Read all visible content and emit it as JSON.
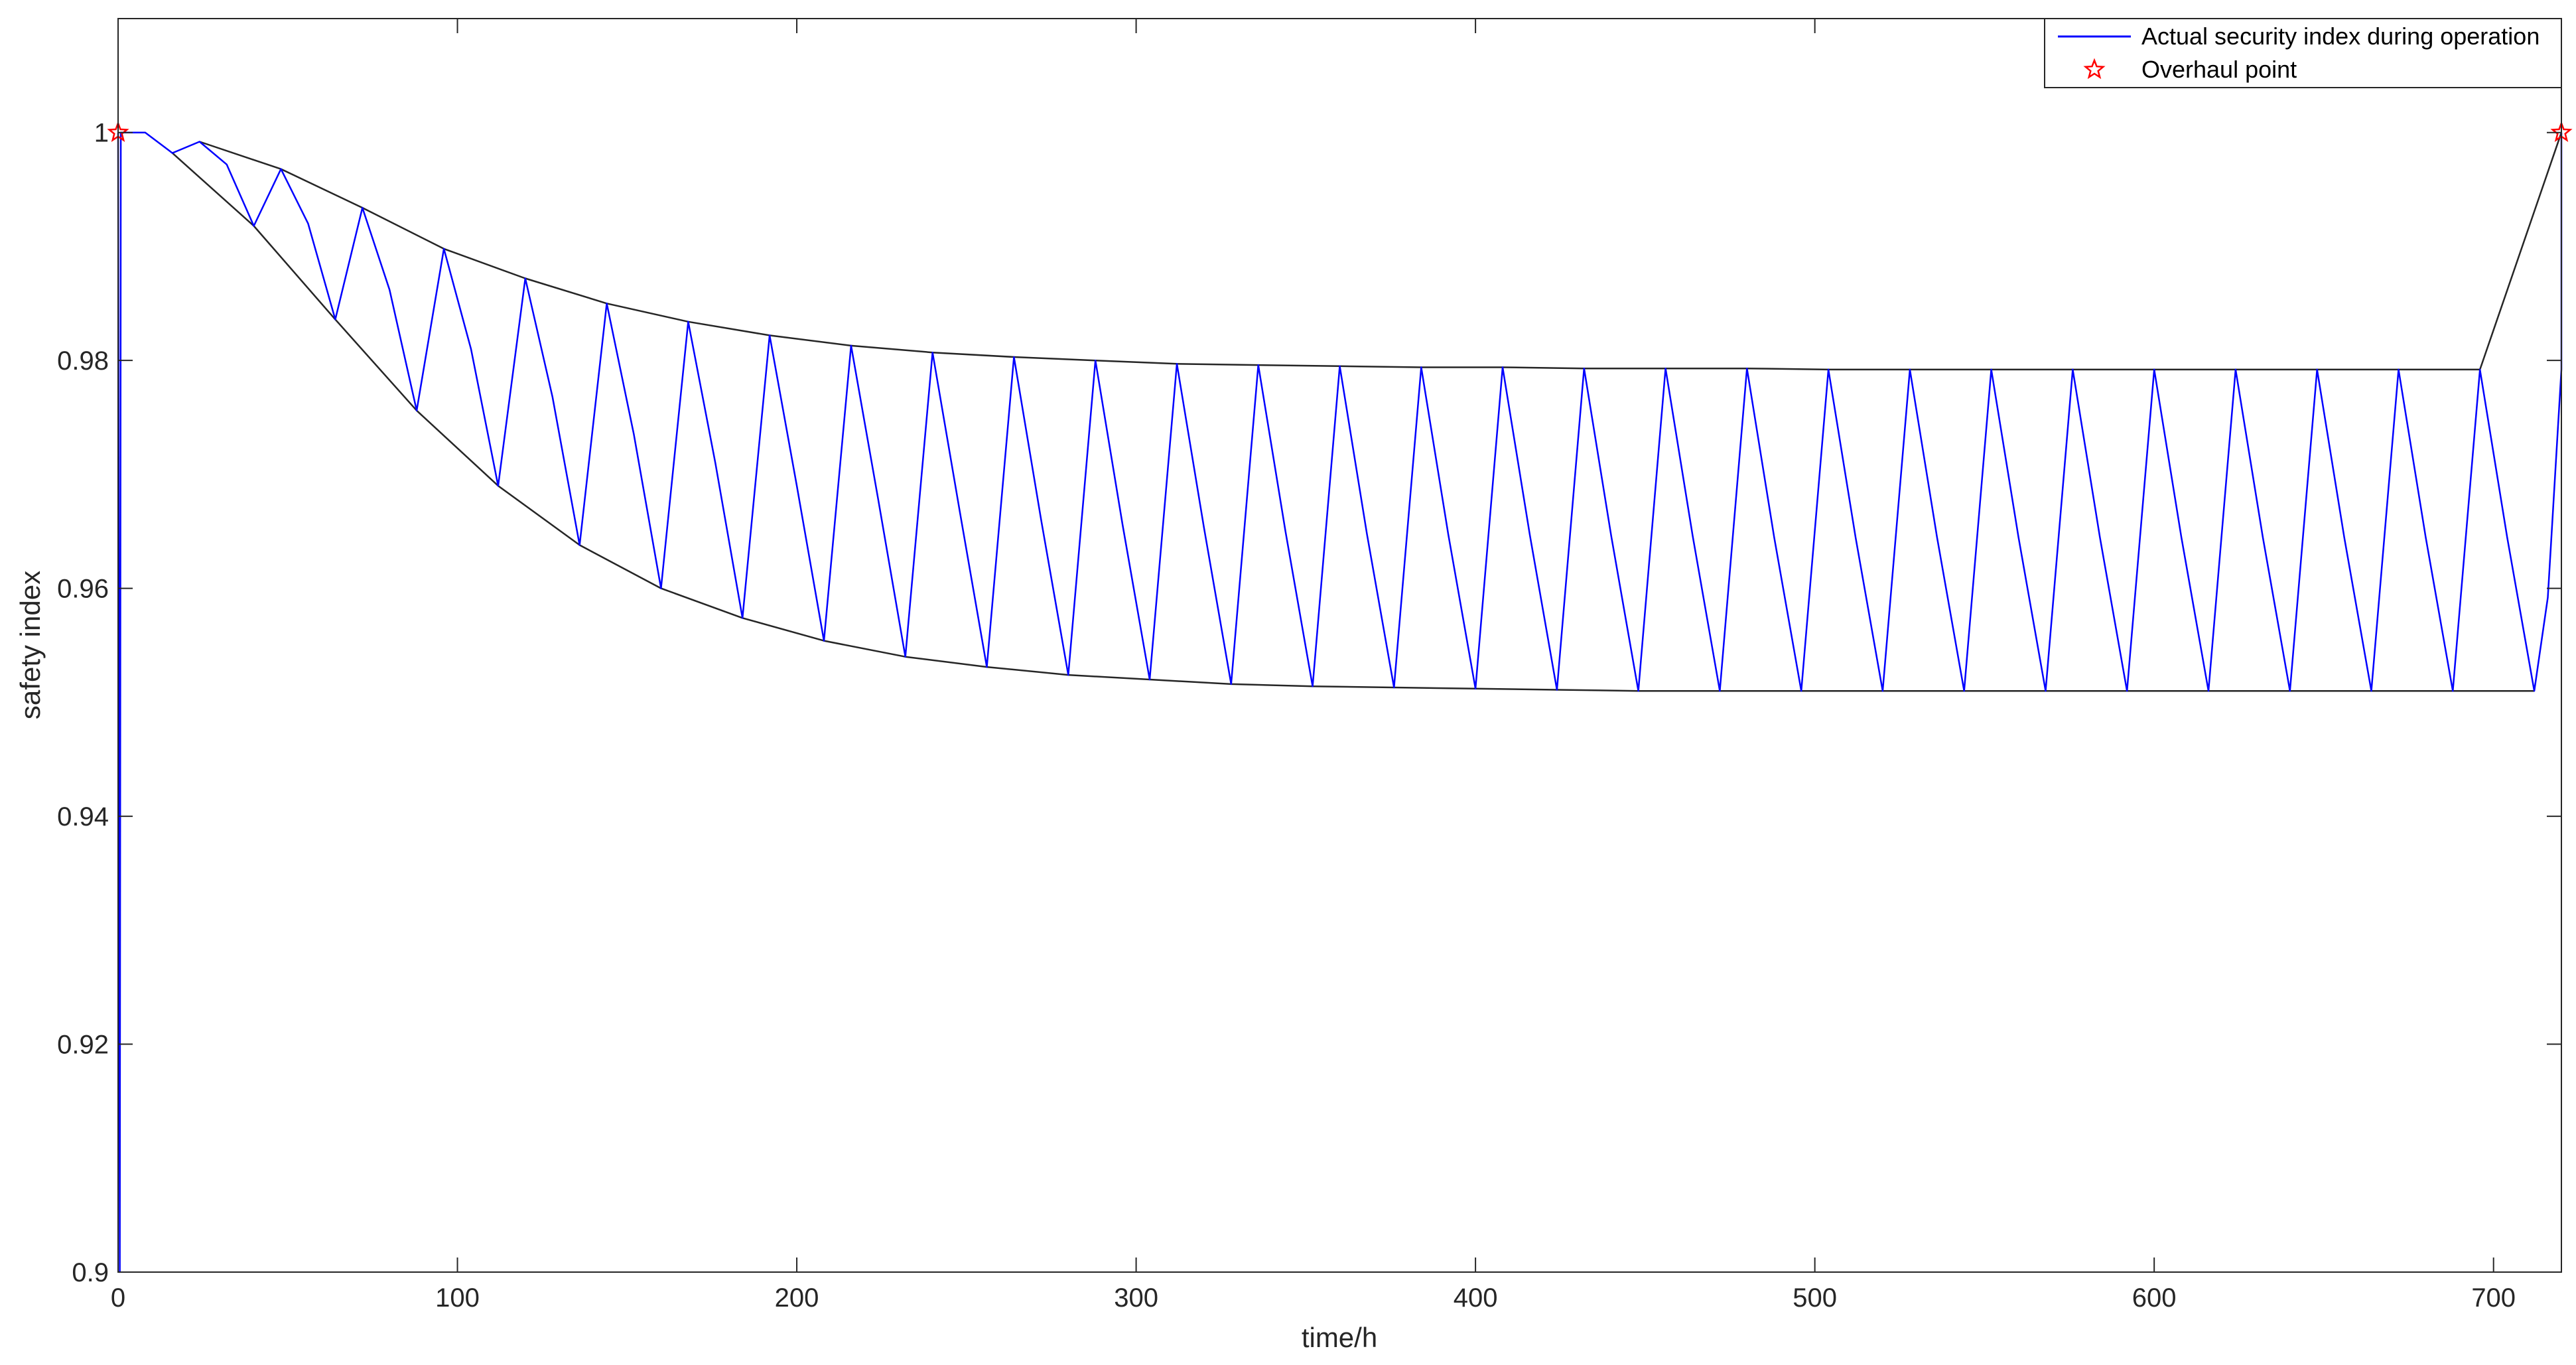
{
  "chart_data": {
    "type": "line",
    "xlabel": "time/h",
    "ylabel": "safety index",
    "xlim": [
      0,
      720
    ],
    "ylim": [
      0.9,
      1.01
    ],
    "xticks": [
      0,
      100,
      200,
      300,
      400,
      500,
      600,
      700
    ],
    "xtick_labels": [
      "0",
      "100",
      "200",
      "300",
      "400",
      "500",
      "600",
      "700"
    ],
    "yticks": [
      0.9,
      0.92,
      0.94,
      0.96,
      0.98,
      1.0
    ],
    "ytick_labels": [
      "0.9",
      "0.92",
      "0.94",
      "0.96",
      "0.98",
      "1"
    ],
    "grid": false,
    "legend_position": "top-right",
    "colors": {
      "actual": "#0000ff",
      "envelope": "#262626",
      "overhaul": "#ff0000",
      "axes": "#262626"
    },
    "series": [
      {
        "name": "Actual security index during operation",
        "style": "line",
        "color": "#0000ff",
        "points": [
          [
            0,
            1.0
          ],
          [
            0.5,
            0.9
          ],
          [
            0.8,
            1.0
          ],
          [
            8,
            1.0
          ],
          [
            16,
            0.9982
          ],
          [
            24,
            0.9992
          ],
          [
            32,
            0.9972
          ],
          [
            40,
            0.9918
          ],
          [
            48,
            0.9968
          ],
          [
            56,
            0.992
          ],
          [
            64,
            0.9836
          ],
          [
            72,
            0.9934
          ],
          [
            80,
            0.9862
          ],
          [
            88,
            0.9756
          ],
          [
            96,
            0.9898
          ],
          [
            104,
            0.981
          ],
          [
            112,
            0.969
          ],
          [
            120,
            0.9872
          ],
          [
            128,
            0.9768
          ],
          [
            136,
            0.9638
          ],
          [
            144,
            0.985
          ],
          [
            152,
            0.9735
          ],
          [
            160,
            0.96
          ],
          [
            168,
            0.9834
          ],
          [
            176,
            0.971
          ],
          [
            184,
            0.9574
          ],
          [
            192,
            0.9822
          ],
          [
            200,
            0.969
          ],
          [
            208,
            0.9554
          ],
          [
            216,
            0.9813
          ],
          [
            224,
            0.9678
          ],
          [
            232,
            0.954
          ],
          [
            240,
            0.9807
          ],
          [
            248,
            0.9668
          ],
          [
            256,
            0.9531
          ],
          [
            264,
            0.9803
          ],
          [
            272,
            0.966
          ],
          [
            280,
            0.9524
          ],
          [
            288,
            0.98
          ],
          [
            296,
            0.9656
          ],
          [
            304,
            0.952
          ],
          [
            312,
            0.9797
          ],
          [
            320,
            0.9653
          ],
          [
            328,
            0.9516
          ],
          [
            336,
            0.9796
          ],
          [
            344,
            0.965
          ],
          [
            352,
            0.9514
          ],
          [
            360,
            0.9795
          ],
          [
            368,
            0.9648
          ],
          [
            376,
            0.9513
          ],
          [
            384,
            0.9794
          ],
          [
            392,
            0.9647
          ],
          [
            400,
            0.9512
          ],
          [
            408,
            0.9794
          ],
          [
            416,
            0.9647
          ],
          [
            424,
            0.9511
          ],
          [
            432,
            0.9793
          ],
          [
            440,
            0.9646
          ],
          [
            448,
            0.951
          ],
          [
            456,
            0.9793
          ],
          [
            464,
            0.9646
          ],
          [
            472,
            0.951
          ],
          [
            480,
            0.9793
          ],
          [
            488,
            0.9645
          ],
          [
            496,
            0.951
          ],
          [
            504,
            0.9792
          ],
          [
            512,
            0.9645
          ],
          [
            520,
            0.951
          ],
          [
            528,
            0.9792
          ],
          [
            536,
            0.9645
          ],
          [
            544,
            0.951
          ],
          [
            552,
            0.9792
          ],
          [
            560,
            0.9645
          ],
          [
            568,
            0.951
          ],
          [
            576,
            0.9792
          ],
          [
            584,
            0.9645
          ],
          [
            592,
            0.951
          ],
          [
            600,
            0.9792
          ],
          [
            608,
            0.9645
          ],
          [
            616,
            0.951
          ],
          [
            624,
            0.9792
          ],
          [
            632,
            0.9645
          ],
          [
            640,
            0.951
          ],
          [
            648,
            0.9792
          ],
          [
            656,
            0.9645
          ],
          [
            664,
            0.951
          ],
          [
            672,
            0.9792
          ],
          [
            680,
            0.9645
          ],
          [
            688,
            0.951
          ],
          [
            696,
            0.9792
          ],
          [
            704,
            0.9645
          ],
          [
            712,
            0.951
          ],
          [
            716,
            0.9592
          ],
          [
            720,
            0.9792
          ],
          [
            720,
            1.0
          ]
        ]
      },
      {
        "name": "",
        "style": "line",
        "color": "#262626",
        "points": [
          [
            24,
            0.9992
          ],
          [
            48,
            0.9968
          ],
          [
            72,
            0.9934
          ],
          [
            96,
            0.9898
          ],
          [
            120,
            0.9872
          ],
          [
            144,
            0.985
          ],
          [
            168,
            0.9834
          ],
          [
            192,
            0.9822
          ],
          [
            216,
            0.9813
          ],
          [
            240,
            0.9807
          ],
          [
            264,
            0.9803
          ],
          [
            288,
            0.98
          ],
          [
            312,
            0.9797
          ],
          [
            336,
            0.9796
          ],
          [
            360,
            0.9795
          ],
          [
            384,
            0.9794
          ],
          [
            408,
            0.9794
          ],
          [
            432,
            0.9793
          ],
          [
            456,
            0.9793
          ],
          [
            480,
            0.9793
          ],
          [
            504,
            0.9792
          ],
          [
            528,
            0.9792
          ],
          [
            552,
            0.9792
          ],
          [
            576,
            0.9792
          ],
          [
            600,
            0.9792
          ],
          [
            624,
            0.9792
          ],
          [
            648,
            0.9792
          ],
          [
            672,
            0.9792
          ],
          [
            696,
            0.9792
          ],
          [
            720,
            1.0
          ]
        ]
      },
      {
        "name": "",
        "style": "line",
        "color": "#262626",
        "points": [
          [
            16,
            0.9982
          ],
          [
            40,
            0.9918
          ],
          [
            64,
            0.9836
          ],
          [
            88,
            0.9756
          ],
          [
            112,
            0.969
          ],
          [
            136,
            0.9638
          ],
          [
            160,
            0.96
          ],
          [
            184,
            0.9574
          ],
          [
            208,
            0.9554
          ],
          [
            232,
            0.954
          ],
          [
            256,
            0.9531
          ],
          [
            280,
            0.9524
          ],
          [
            304,
            0.952
          ],
          [
            328,
            0.9516
          ],
          [
            352,
            0.9514
          ],
          [
            376,
            0.9513
          ],
          [
            400,
            0.9512
          ],
          [
            424,
            0.9511
          ],
          [
            448,
            0.951
          ],
          [
            472,
            0.951
          ],
          [
            496,
            0.951
          ],
          [
            520,
            0.951
          ],
          [
            544,
            0.951
          ],
          [
            568,
            0.951
          ],
          [
            592,
            0.951
          ],
          [
            616,
            0.951
          ],
          [
            640,
            0.951
          ],
          [
            664,
            0.951
          ],
          [
            688,
            0.951
          ],
          [
            712,
            0.951
          ]
        ]
      },
      {
        "name": "Overhaul point",
        "style": "marker",
        "marker": "star",
        "color": "#ff0000",
        "points": [
          [
            0,
            1.0
          ],
          [
            720,
            1.0
          ]
        ]
      }
    ]
  }
}
